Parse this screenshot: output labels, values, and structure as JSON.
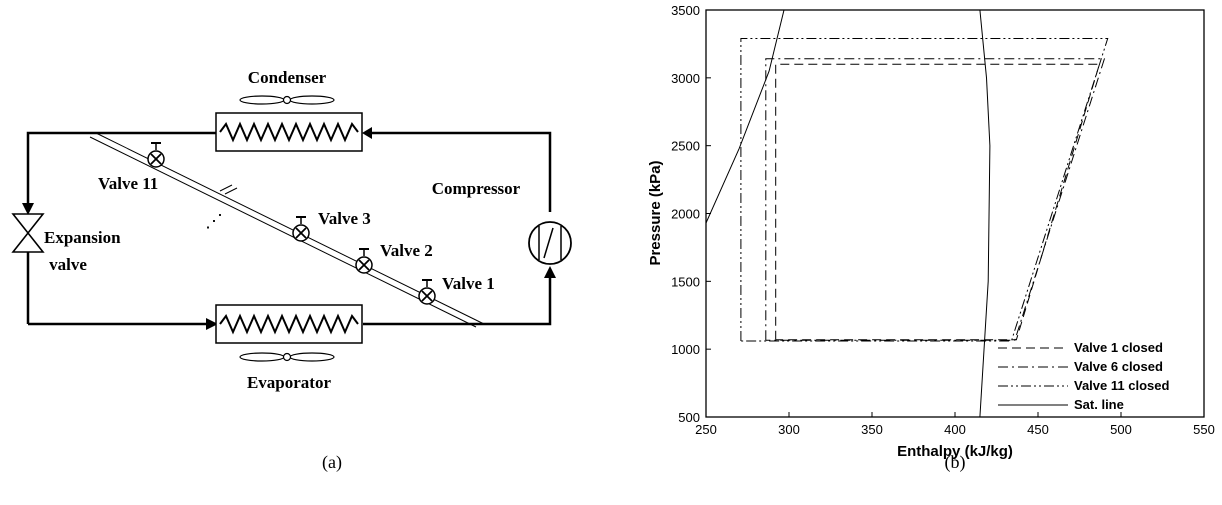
{
  "panel_a": {
    "caption": "(a)",
    "labels": {
      "condenser": "Condenser",
      "evaporator": "Evaporator",
      "compressor": "Compressor",
      "expansion_line1": "Expansion",
      "expansion_line2": "valve",
      "valve_11": "Valve 11",
      "valve_3": "Valve 3",
      "valve_2": "Valve 2",
      "valve_1": "Valve 1",
      "ellipsis": "⋰"
    }
  },
  "panel_b": {
    "caption": "(b)"
  },
  "chart_data": {
    "type": "line",
    "xlabel": "Enthalpy (kJ/kg)",
    "ylabel": "Pressure (kPa)",
    "xlim": [
      250,
      550
    ],
    "ylim": [
      500,
      3500
    ],
    "xticks": [
      250,
      300,
      350,
      400,
      450,
      500,
      550
    ],
    "yticks": [
      500,
      1000,
      1500,
      2000,
      2500,
      3000,
      3500
    ],
    "grid": false,
    "legend_position": "bottom-right",
    "series": [
      {
        "name": "Valve 1 closed",
        "style": "dashed",
        "points": [
          [
            292,
            1070
          ],
          [
            292,
            3100
          ],
          [
            487,
            3100
          ],
          [
            437,
            1070
          ],
          [
            292,
            1070
          ]
        ]
      },
      {
        "name": "Valve 6 closed",
        "style": "dash-dot",
        "points": [
          [
            286,
            1065
          ],
          [
            286,
            3140
          ],
          [
            490,
            3140
          ],
          [
            436,
            1065
          ],
          [
            286,
            1065
          ]
        ]
      },
      {
        "name": "Valve 11 closed",
        "style": "dash-dot-dot",
        "points": [
          [
            271,
            1060
          ],
          [
            271,
            3290
          ],
          [
            492,
            3290
          ],
          [
            434,
            1060
          ],
          [
            271,
            1060
          ]
        ]
      },
      {
        "name": "Sat. line",
        "style": "solid",
        "segments": [
          [
            [
              250,
              1930
            ],
            [
              270,
              2480
            ],
            [
              288,
              3050
            ],
            [
              297,
              3500
            ]
          ],
          [
            [
              415,
              500
            ],
            [
              420,
              1500
            ],
            [
              421,
              2500
            ],
            [
              419,
              3000
            ],
            [
              415,
              3500
            ]
          ]
        ]
      }
    ]
  }
}
